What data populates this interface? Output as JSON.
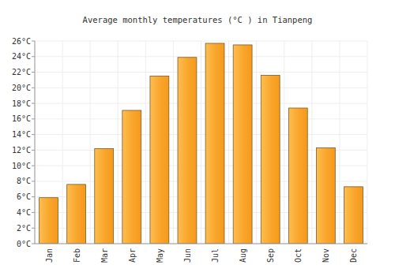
{
  "chart_data": {
    "type": "bar",
    "title": "Average monthly temperatures (°C ) in Tianpeng",
    "categories": [
      "Jan",
      "Feb",
      "Mar",
      "Apr",
      "May",
      "Jun",
      "Jul",
      "Aug",
      "Sep",
      "Oct",
      "Nov",
      "Dec"
    ],
    "values": [
      5.9,
      7.6,
      12.2,
      17.1,
      21.5,
      23.9,
      25.7,
      25.5,
      21.6,
      17.4,
      12.3,
      7.3
    ],
    "color": "#f9a52b",
    "ylim": [
      0,
      26
    ],
    "yticks": [
      {
        "value": 0,
        "label": "0°C"
      },
      {
        "value": 2,
        "label": "2°C"
      },
      {
        "value": 4,
        "label": "4°C"
      },
      {
        "value": 6,
        "label": "6°C"
      },
      {
        "value": 8,
        "label": "8°C"
      },
      {
        "value": 10,
        "label": "10°C"
      },
      {
        "value": 12,
        "label": "12°C"
      },
      {
        "value": 14,
        "label": "14°C"
      },
      {
        "value": 16,
        "label": "16°C"
      },
      {
        "value": 18,
        "label": "18°C"
      },
      {
        "value": 20,
        "label": "20°C"
      },
      {
        "value": 22,
        "label": "22°C"
      },
      {
        "value": 24,
        "label": "24°C"
      },
      {
        "value": 26,
        "label": "26°C"
      }
    ],
    "grid": true
  }
}
